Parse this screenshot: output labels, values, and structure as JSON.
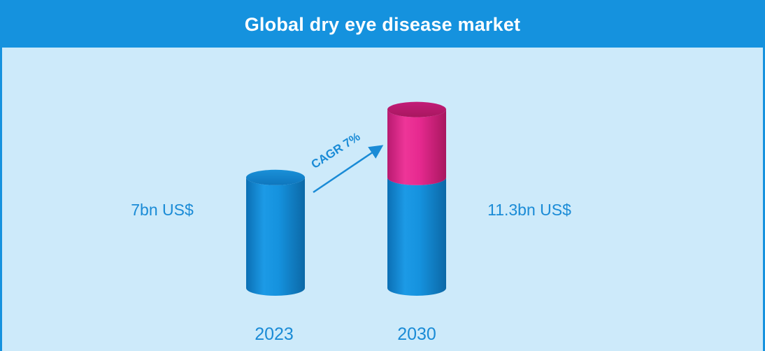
{
  "colors": {
    "frame_border": "#1592de",
    "background": "#cdeafa",
    "title_bar": "#1592de",
    "bar_blue": "#1592de",
    "bar_pink": "#e6298f",
    "label_text": "#1a8bd6"
  },
  "chart_data": {
    "type": "bar",
    "title": "Global dry eye disease market",
    "categories": [
      "2023",
      "2030"
    ],
    "values": [
      7,
      11.3
    ],
    "value_labels": [
      "7bn US$",
      "11.3bn US$"
    ],
    "unit": "bn US$",
    "annotation": "CAGR 7%",
    "stacked_highlight": {
      "base_value": 7,
      "growth_value": 4.3,
      "base_color": "#1592de",
      "growth_color": "#e6298f"
    }
  }
}
